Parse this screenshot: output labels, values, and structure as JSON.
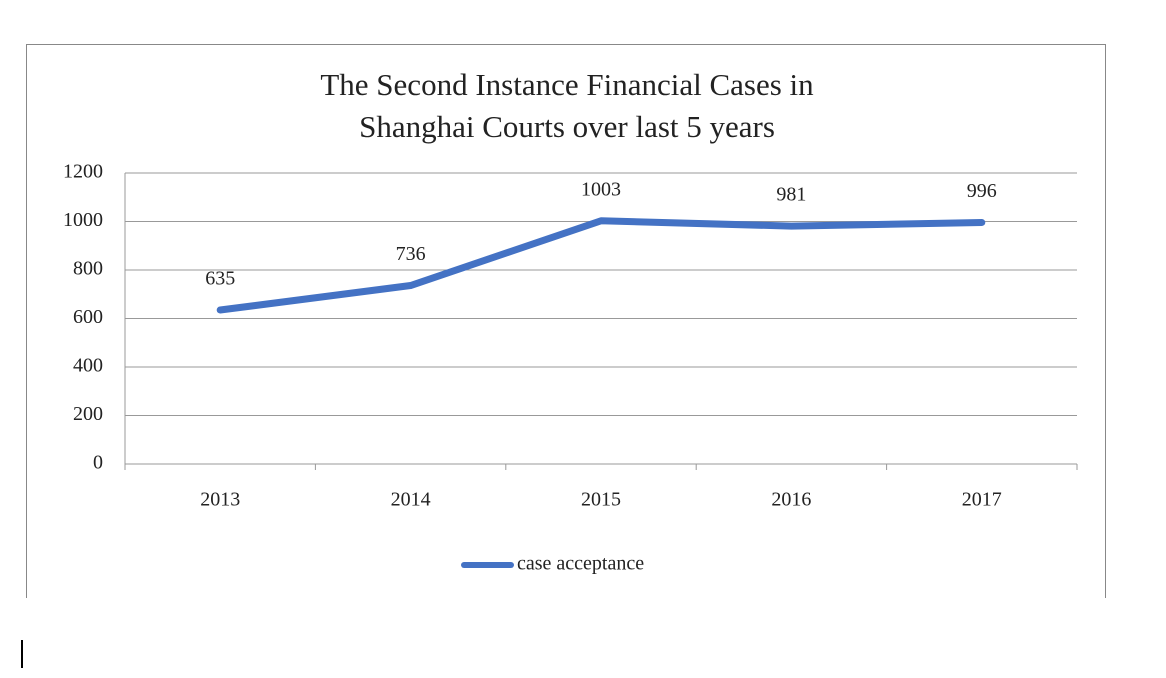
{
  "chart_data": {
    "type": "line",
    "title": "The Second Instance Financial Cases in Shanghai Courts over last 5 years",
    "categories": [
      "2013",
      "2014",
      "2015",
      "2016",
      "2017"
    ],
    "series": [
      {
        "name": "case acceptance",
        "color": "#4472c4",
        "values": [
          635,
          736,
          1003,
          981,
          996
        ]
      }
    ],
    "ylim": [
      0,
      1200
    ],
    "yticks": [
      0,
      200,
      400,
      600,
      800,
      1000,
      1200
    ],
    "grid": true,
    "legend": "bottom",
    "data_labels": true
  }
}
